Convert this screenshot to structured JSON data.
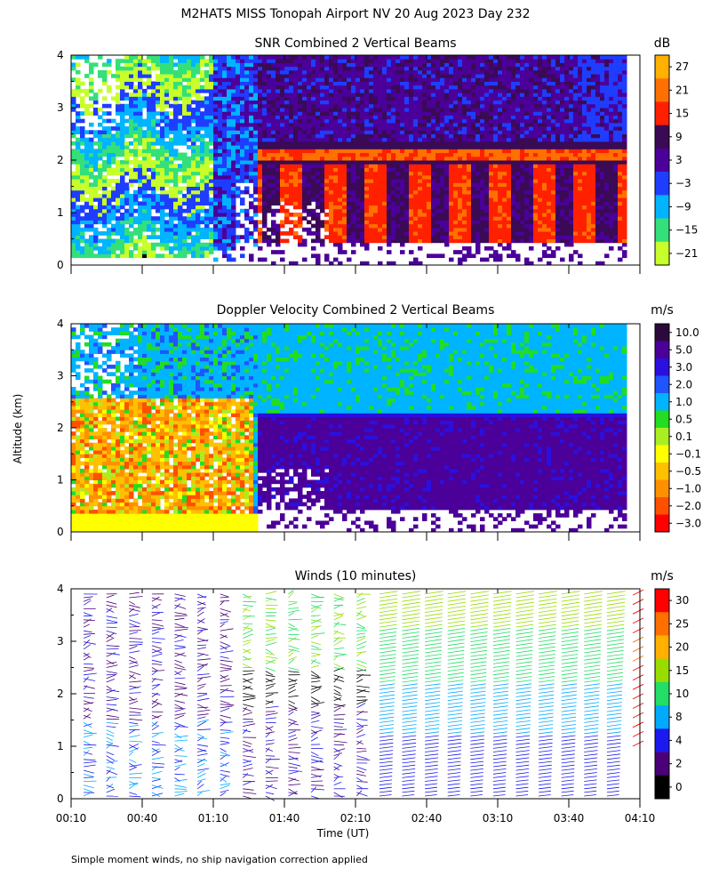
{
  "page": {
    "title": "M2HATS MISS Tonopah Airport NV  20 Aug 2023 Day 232",
    "footnote": "Simple moment winds, no ship navigation correction applied",
    "ylabel": "Altitude (km)",
    "xlabel": "Time (UT)"
  },
  "chart_data": [
    {
      "type": "heatmap",
      "title": "SNR Combined 2 Vertical Beams",
      "unit": "dB",
      "x_range": [
        "00:10",
        "04:10"
      ],
      "ylim": [
        0,
        4
      ],
      "y_ticks": [
        "0",
        "1",
        "2",
        "3",
        "4"
      ],
      "colorbar": {
        "labels": [
          "27",
          "21",
          "15",
          "9",
          "3",
          "−3",
          "−9",
          "−15",
          "−21"
        ],
        "colors": [
          "#ffb000",
          "#ff7000",
          "#ff2000",
          "#3a0a55",
          "#4b0099",
          "#1f3dff",
          "#00b4ff",
          "#33e07a",
          "#c8ff2a"
        ]
      }
    },
    {
      "type": "heatmap",
      "title": "Doppler Velocity Combined 2 Vertical Beams",
      "unit": "m/s",
      "x_range": [
        "00:10",
        "04:10"
      ],
      "ylim": [
        0,
        4
      ],
      "y_ticks": [
        "0",
        "1",
        "2",
        "3",
        "4"
      ],
      "colorbar": {
        "labels": [
          "10.0",
          "5.0",
          "3.0",
          "2.0",
          "1.0",
          "0.5",
          "0.1",
          "−0.1",
          "−0.5",
          "−1.0",
          "−2.0",
          "−3.0"
        ],
        "colors": [
          "#2a0a3a",
          "#4b0099",
          "#2a10e0",
          "#1f55ff",
          "#00b4ff",
          "#22dd22",
          "#aaee22",
          "#ffff00",
          "#ffc000",
          "#ff9000",
          "#ff5000",
          "#ff0000"
        ]
      }
    },
    {
      "type": "scatter",
      "title": "Winds (10 minutes)",
      "unit": "m/s",
      "xlim": [
        "00:10",
        "04:10"
      ],
      "x_ticks": [
        "00:10",
        "00:40",
        "01:10",
        "01:40",
        "02:10",
        "02:40",
        "03:10",
        "03:40",
        "04:10"
      ],
      "ylim": [
        0,
        4
      ],
      "y_ticks": [
        "0",
        "1",
        "2",
        "3",
        "4"
      ],
      "colorbar": {
        "labels": [
          "30",
          "25",
          "20",
          "15",
          "10",
          "8",
          "4",
          "2",
          "0"
        ],
        "colors": [
          "#ff0000",
          "#ff7000",
          "#ffb000",
          "#99dd00",
          "#22dd66",
          "#00aaff",
          "#1a1aee",
          "#4b0077",
          "#000000"
        ]
      }
    }
  ]
}
